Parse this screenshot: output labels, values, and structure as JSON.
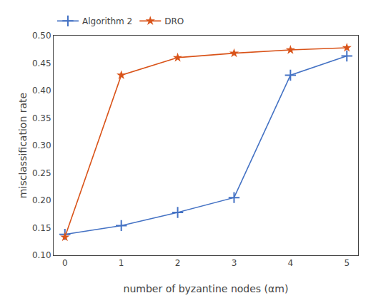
{
  "chart_data": {
    "type": "line",
    "x": [
      0,
      1,
      2,
      3,
      4,
      5
    ],
    "series": [
      {
        "name": "Algorithm 2",
        "color": "#4472c4",
        "marker": "plus",
        "values": [
          0.138,
          0.154,
          0.178,
          0.205,
          0.428,
          0.463
        ]
      },
      {
        "name": "DRO",
        "color": "#d95319",
        "marker": "star",
        "values": [
          0.133,
          0.428,
          0.46,
          0.468,
          0.474,
          0.478
        ]
      }
    ],
    "xlabel": "number of byzantine nodes (αm)",
    "ylabel": "misclassification rate",
    "xlim": [
      -0.2,
      5.2
    ],
    "ylim": [
      0.1,
      0.5
    ],
    "xticks": [
      0,
      1,
      2,
      3,
      4,
      5
    ],
    "yticks": [
      {
        "value": 0.1,
        "label": "0.10"
      },
      0.15,
      {
        "value": 0.2,
        "label": "0.20"
      },
      0.25,
      {
        "value": 0.3,
        "label": "0.30"
      },
      0.35,
      {
        "value": 0.4,
        "label": "0.40"
      },
      0.45,
      {
        "value": 0.5,
        "label": "0.50"
      }
    ],
    "legend": "upper left",
    "grid": false
  }
}
